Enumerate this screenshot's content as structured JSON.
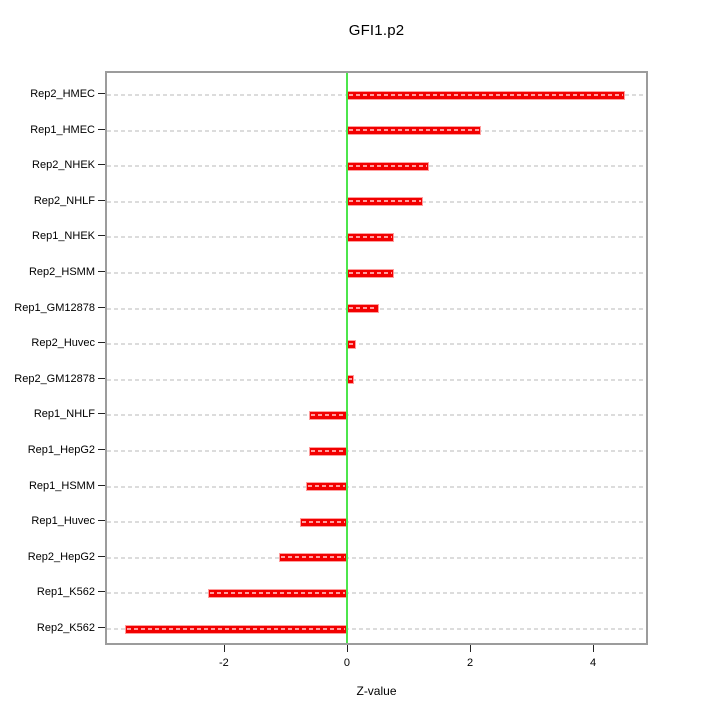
{
  "title": "GFI1.p2",
  "xlabel": "Z-value",
  "chart_data": {
    "type": "bar",
    "orientation": "horizontal",
    "title": "GFI1.p2",
    "xlabel": "Z-value",
    "categories_top_to_bottom": [
      "Rep2_HMEC",
      "Rep1_HMEC",
      "Rep2_NHEK",
      "Rep2_NHLF",
      "Rep1_NHEK",
      "Rep2_HSMM",
      "Rep1_GM12878",
      "Rep2_Huvec",
      "Rep2_GM12878",
      "Rep1_NHLF",
      "Rep1_HepG2",
      "Rep1_HSMM",
      "Rep1_Huvec",
      "Rep2_HepG2",
      "Rep1_K562",
      "Rep2_K562"
    ],
    "values": [
      4.52,
      2.18,
      1.33,
      1.23,
      0.77,
      0.76,
      0.52,
      0.15,
      0.11,
      -0.61,
      -0.62,
      -0.66,
      -0.76,
      -1.11,
      -2.26,
      -3.61
    ],
    "x_ticks": [
      "-2",
      "0",
      "2",
      "4"
    ],
    "x_tick_values": [
      -2,
      0,
      2,
      4
    ],
    "xlim": [
      -3.9,
      4.86
    ],
    "grid": "dashed-horizontal-per-category",
    "legend": "none",
    "colors": {
      "bar_fill": "#f20000",
      "bar_border": "#ff9d9d",
      "zero_line": "#4ce64c",
      "grid_line": "#dcdcdc",
      "box_border": "#9c9c9c",
      "text": "#000000"
    }
  }
}
